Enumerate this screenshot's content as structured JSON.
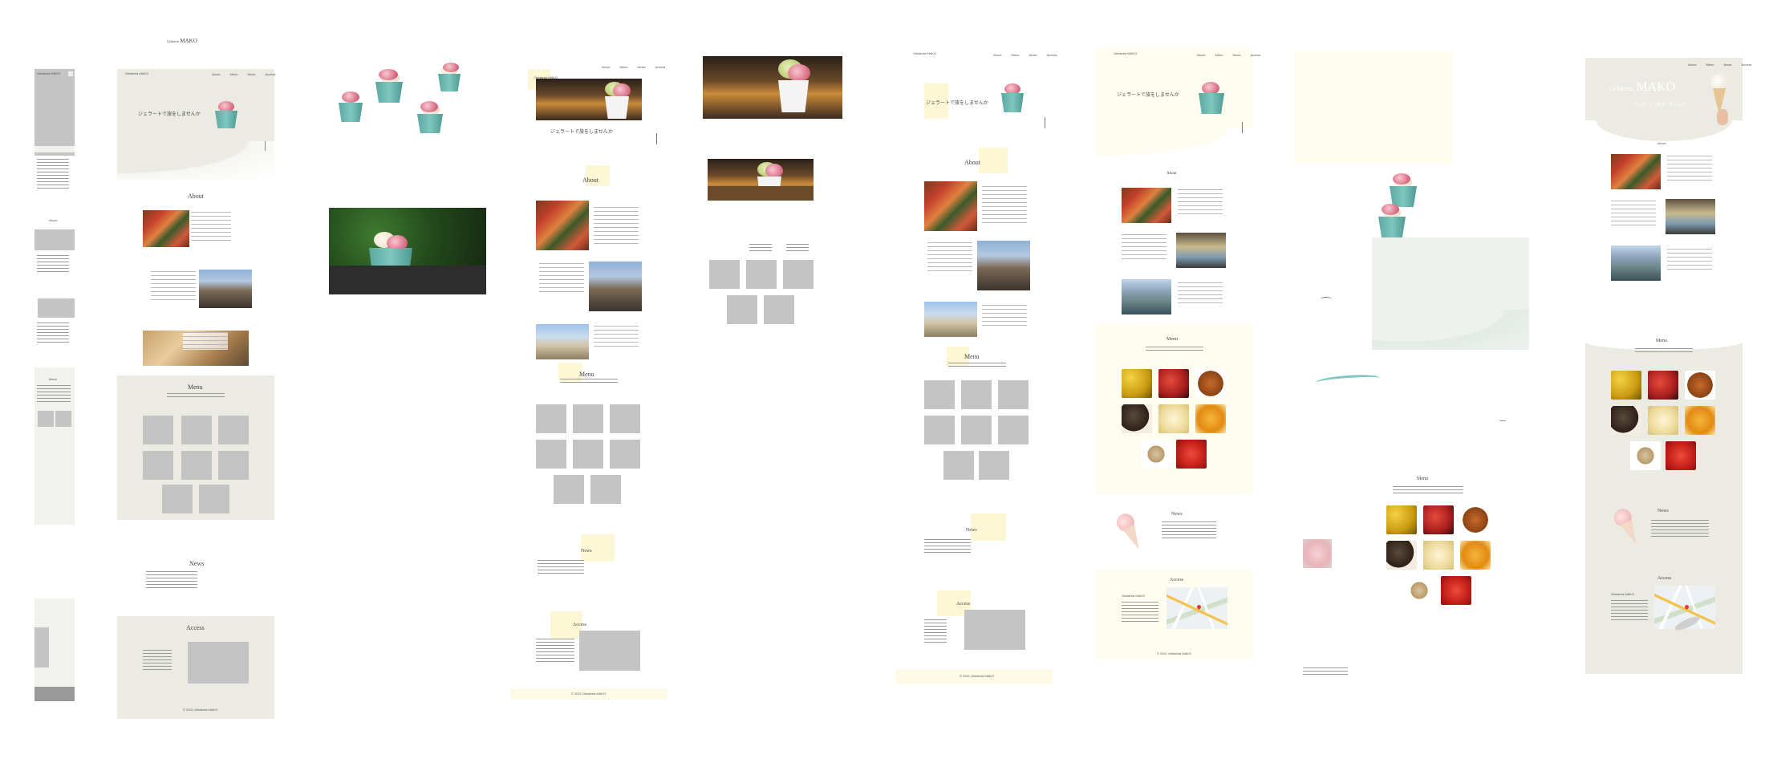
{
  "brand": {
    "prefix": "Gelateria",
    "name": "MAKO"
  },
  "hero_tagline": "ジェラートで旅をしませんか",
  "nav": [
    "About",
    "Menu",
    "News",
    "Access"
  ],
  "sections": {
    "about": "About",
    "menu": "Menu",
    "news": "News",
    "access": "Access"
  },
  "footer": "© 2021 Gelateria MAKO",
  "frames": [
    "mobile-wireframe",
    "desktop-wireframe",
    "asset-cups",
    "wireframe-yellow",
    "asset-photos",
    "design-draft-1",
    "design-draft-2",
    "asset-sheet",
    "final-design"
  ],
  "colors": {
    "beige": "#ecebe3",
    "cream": "#fffdf0",
    "mint": "#7fc7bf",
    "pink": "#d86a82",
    "grey": "#c4c4c4"
  }
}
